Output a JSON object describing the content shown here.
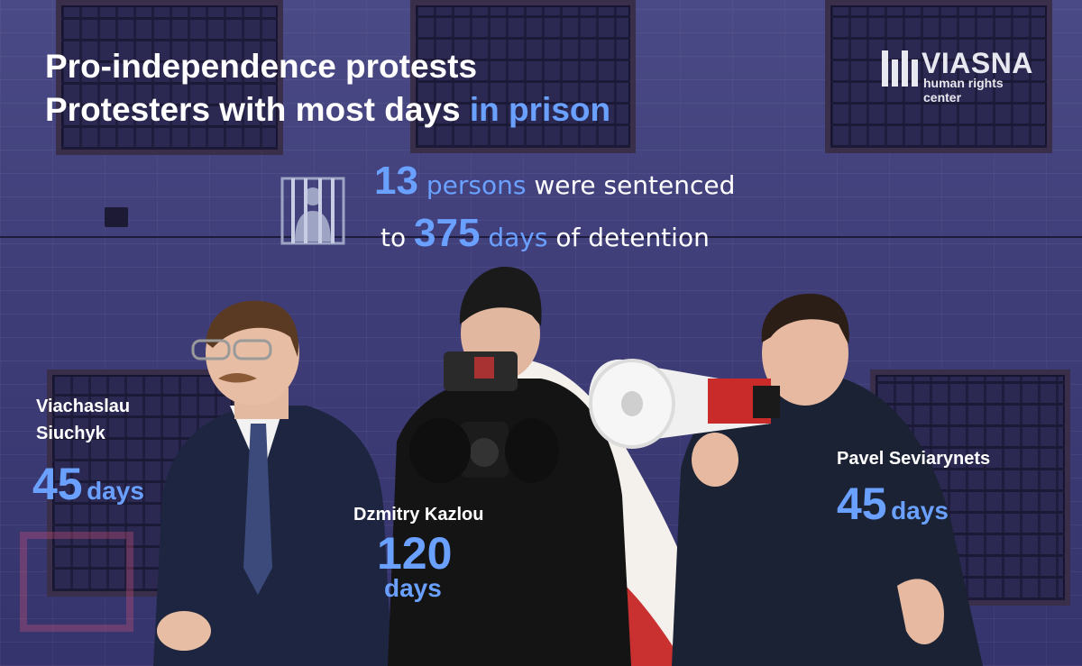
{
  "headline": {
    "line1": "Pro-independence protests",
    "line2_main": "Protesters with most days",
    "line2_accent": "in prison"
  },
  "logo": {
    "name": "VIASNA",
    "subtitle": "human rights center"
  },
  "stats": {
    "persons_count": "13",
    "persons_word": "persons",
    "persons_text": "were sentenced",
    "to_word": "to",
    "days_count": "375",
    "days_word": "days",
    "days_text": "of detention"
  },
  "people": [
    {
      "name_line1": "Viachaslau",
      "name_line2": "Siuchyk",
      "days": "45",
      "unit": "days"
    },
    {
      "name": "Dzmitry Kazlou",
      "days": "120",
      "unit": "days"
    },
    {
      "name": "Pavel Seviarynets",
      "days": "45",
      "unit": "days"
    }
  ],
  "icons": {
    "prison": "person-behind-bars-icon",
    "logo": "viasna-logo-icon"
  },
  "colors": {
    "accent": "#6aa0ff",
    "text": "#ffffff",
    "background": "#3f3d78"
  }
}
